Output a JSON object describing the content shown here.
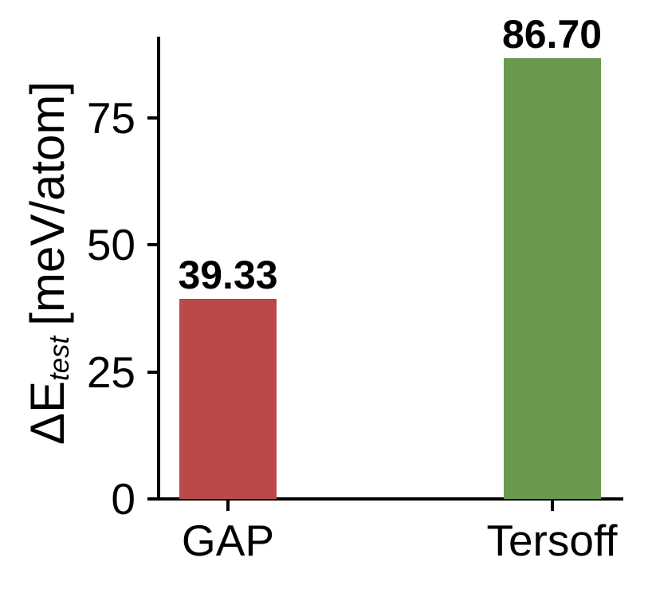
{
  "figure": {
    "background": "#ffffff",
    "axis_color": "#000000",
    "text_color": "#000000"
  },
  "chart_data": {
    "type": "bar",
    "categories": [
      "GAP",
      "Tersoff"
    ],
    "values": [
      39.33,
      86.7
    ],
    "value_labels": [
      "39.33",
      "86.70"
    ],
    "bar_colors": [
      "#bc4849",
      "#69994e"
    ],
    "title": "",
    "xlabel": "",
    "ylabel": "ΔE_test [meV/atom]",
    "ylabel_parts": {
      "prefix": "ΔE",
      "subscript": "test",
      "suffix": "[meV/atom]"
    },
    "yticks": [
      0,
      25,
      50,
      75
    ],
    "ylim": [
      0,
      91
    ],
    "grid": false,
    "legend": false,
    "annotations": "numeric value printed in bold above each bar"
  }
}
